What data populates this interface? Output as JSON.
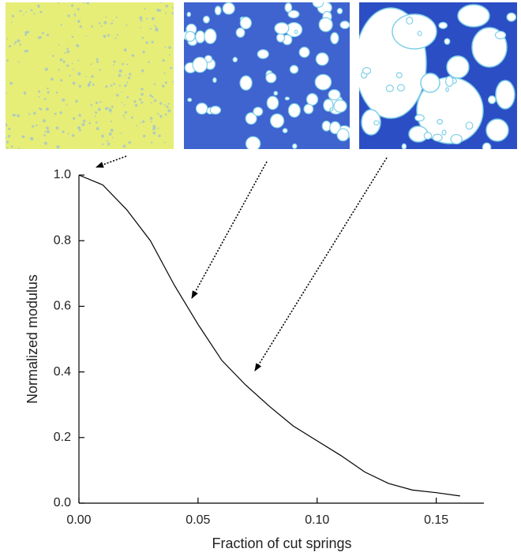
{
  "chart_data": {
    "type": "line",
    "x_label": "Fraction of cut springs",
    "y_label": "Normalized modulus",
    "x": [
      0,
      0.01,
      0.02,
      0.03,
      0.04,
      0.05,
      0.06,
      0.07,
      0.08,
      0.09,
      0.1,
      0.11,
      0.12,
      0.13,
      0.14,
      0.15,
      0.16
    ],
    "series": [
      {
        "color": "#000000",
        "values": [
          1.0,
          0.97,
          0.895,
          0.8,
          0.665,
          0.545,
          0.435,
          0.36,
          0.295,
          0.235,
          0.19,
          0.145,
          0.095,
          0.06,
          0.04,
          0.032,
          0.022
        ]
      }
    ],
    "xlim": [
      0,
      0.17
    ],
    "ylim": [
      0,
      1.0
    ],
    "xticks": [
      {
        "value": 0,
        "label": "0.00"
      },
      {
        "value": 0.05,
        "label": "0.05"
      },
      {
        "value": 0.1,
        "label": "0.10"
      },
      {
        "value": 0.15,
        "label": "0.15"
      }
    ],
    "yticks": [
      {
        "value": 0,
        "label": "0.0"
      },
      {
        "value": 0.2,
        "label": "0.2"
      },
      {
        "value": 0.4,
        "label": "0.4"
      },
      {
        "value": 0.6,
        "label": "0.6"
      },
      {
        "value": 0.8,
        "label": "0.8"
      },
      {
        "value": 1.0,
        "label": "1.0"
      }
    ],
    "grid": false
  }
}
